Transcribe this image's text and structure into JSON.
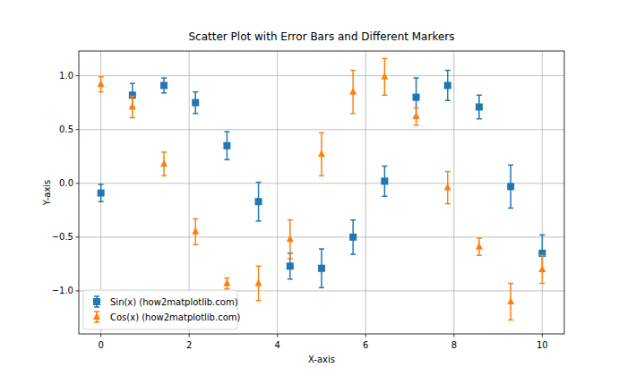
{
  "chart_data": {
    "type": "scatter",
    "title": "Scatter Plot with Error Bars and Different Markers",
    "x_label": "X-axis",
    "y_label": "Y-axis",
    "x": [
      0,
      0.714,
      1.429,
      2.143,
      2.857,
      3.571,
      4.286,
      5,
      5.714,
      6.429,
      7.143,
      7.857,
      8.571,
      9.286,
      10
    ],
    "series": [
      {
        "name": "Sin(x) (how2matplotlib.com)",
        "color": "#1f77b4",
        "marker": "square",
        "values": [
          -0.09,
          0.82,
          0.91,
          0.75,
          0.35,
          -0.17,
          -0.77,
          -0.79,
          -0.5,
          0.02,
          0.8,
          0.91,
          0.71,
          -0.03,
          -0.65
        ],
        "errors": [
          0.08,
          0.11,
          0.07,
          0.1,
          0.13,
          0.18,
          0.12,
          0.18,
          0.16,
          0.14,
          0.18,
          0.14,
          0.11,
          0.2,
          0.17
        ]
      },
      {
        "name": "Cos(x) (how2matplotlib.com)",
        "color": "#ff7f0e",
        "marker": "triangle",
        "values": [
          0.92,
          0.71,
          0.18,
          -0.45,
          -0.93,
          -0.93,
          -0.52,
          0.27,
          0.85,
          0.99,
          0.62,
          -0.04,
          -0.59,
          -1.1,
          -0.8
        ],
        "errors": [
          0.07,
          0.1,
          0.11,
          0.12,
          0.05,
          0.16,
          0.18,
          0.2,
          0.2,
          0.17,
          0.08,
          0.15,
          0.08,
          0.17,
          0.13
        ]
      }
    ],
    "xlim": [
      -0.5,
      10.5
    ],
    "ylim": [
      -1.4,
      1.23
    ],
    "xticks": [
      0,
      2,
      4,
      6,
      8,
      10
    ],
    "yticks": [
      {
        "value": -1,
        "label": "−1.0"
      },
      {
        "value": -0.5,
        "label": "−0.5"
      },
      {
        "value": 0,
        "label": "0.0"
      },
      {
        "value": 0.5,
        "label": "0.5"
      },
      {
        "value": 1,
        "label": "1.0"
      }
    ],
    "grid": true,
    "legend": "lower left"
  }
}
